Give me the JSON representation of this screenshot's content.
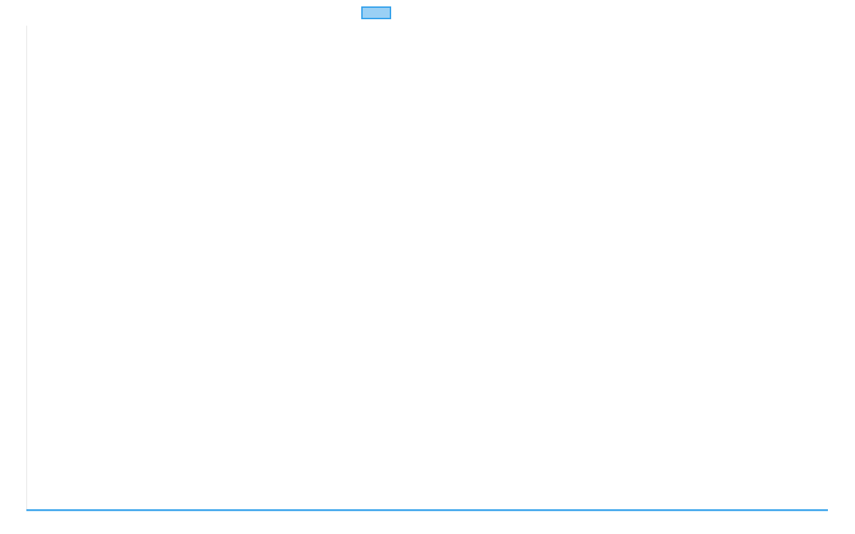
{
  "chart_data": {
    "type": "line",
    "title": "",
    "xlabel": "",
    "ylabel": "",
    "categories": [],
    "series": [
      {
        "color": "#36a2eb",
        "fill": "#9ad0f5",
        "values": []
      }
    ],
    "legend": "top",
    "grid": false
  }
}
